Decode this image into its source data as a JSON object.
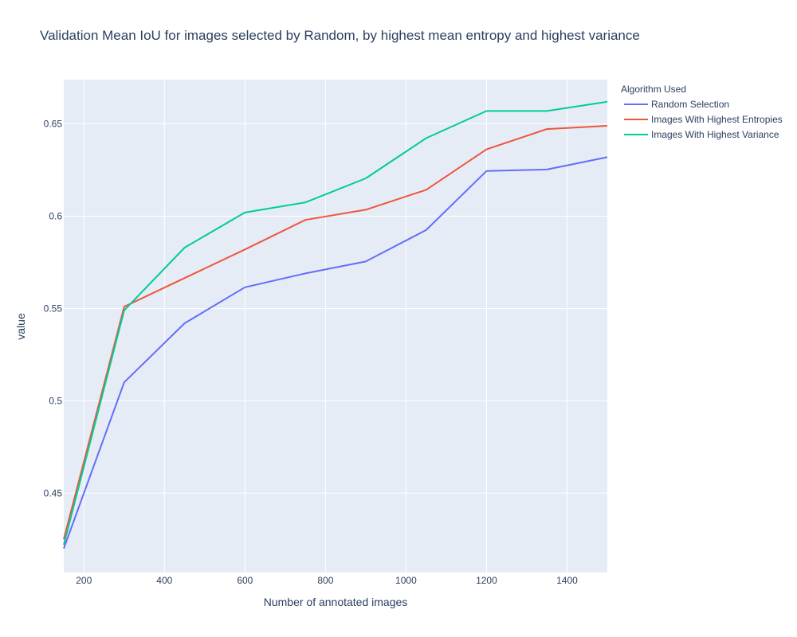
{
  "chart_data": {
    "type": "line",
    "title": "Validation Mean IoU for images selected by Random, by highest mean entropy and highest variance",
    "xlabel": "Number of annotated images",
    "ylabel": "value",
    "xlim": [
      150,
      1500
    ],
    "ylim": [
      0.407,
      0.674
    ],
    "x_ticks": [
      200,
      400,
      600,
      800,
      1000,
      1200,
      1400
    ],
    "y_ticks": [
      0.45,
      0.5,
      0.55,
      0.6,
      0.65
    ],
    "y_tick_labels": [
      "0.45",
      "0.5",
      "0.55",
      "0.6",
      "0.65"
    ],
    "grid": true,
    "legend": {
      "title": "Algorithm Used",
      "placement": "top-right outside"
    },
    "x": [
      150,
      300,
      450,
      600,
      750,
      900,
      1050,
      1200,
      1350,
      1500
    ],
    "series": [
      {
        "name": "Random Selection",
        "color": "#636efa",
        "values": [
          0.42,
          0.51,
          0.542,
          0.5615,
          0.569,
          0.5755,
          0.5925,
          0.6245,
          0.6253,
          0.632
        ]
      },
      {
        "name": "Images With Highest Entropies",
        "color": "#ef553b",
        "values": [
          0.425,
          0.551,
          0.5665,
          0.582,
          0.598,
          0.6035,
          0.6143,
          0.6362,
          0.6472,
          0.649
        ]
      },
      {
        "name": "Images With Highest Variance",
        "color": "#00cc96",
        "values": [
          0.422,
          0.549,
          0.583,
          0.602,
          0.6075,
          0.6205,
          0.6423,
          0.657,
          0.657,
          0.662
        ]
      }
    ]
  }
}
